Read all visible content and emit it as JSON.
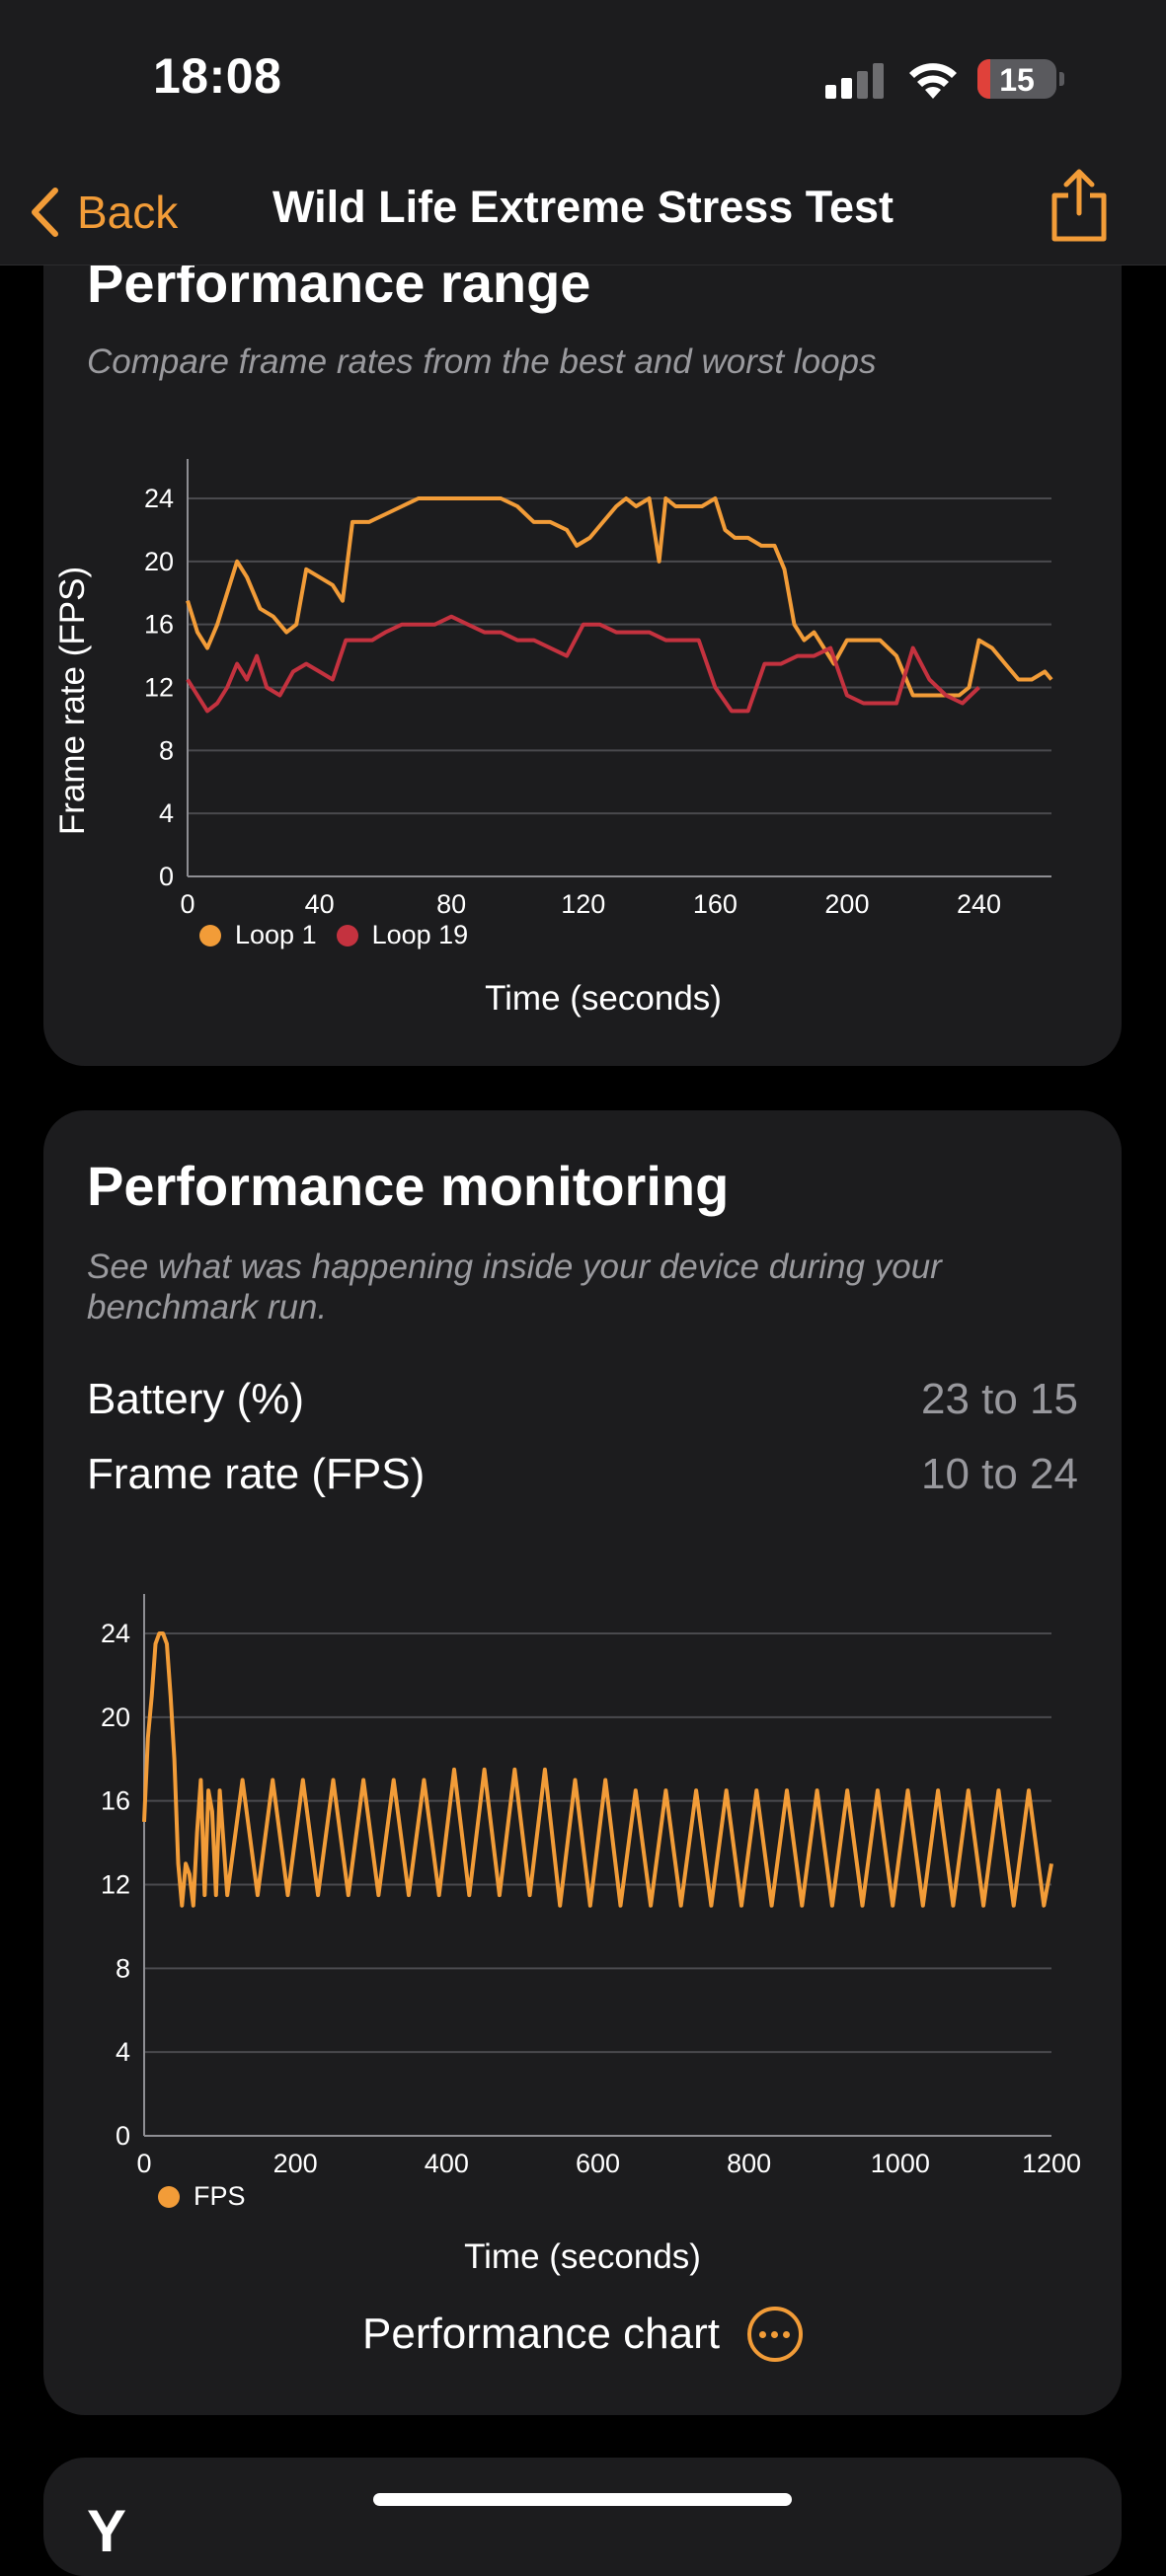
{
  "status_bar": {
    "time": "18:08",
    "battery": "15"
  },
  "nav": {
    "back_label": "Back",
    "title": "Wild Life Extreme Stress Test"
  },
  "range_card": {
    "title": "Performance range",
    "subtitle": "Compare frame rates from the best and worst loops"
  },
  "monitor_card": {
    "title": "Performance monitoring",
    "subtitle": "See what was happening inside your device during your benchmark run.",
    "rows": [
      {
        "label": "Battery (%)",
        "value": "23 to 15"
      },
      {
        "label": "Frame rate (FPS)",
        "value": "10 to 24"
      }
    ],
    "link_label": "Performance chart"
  },
  "next_card": {
    "title_partial": "Y"
  },
  "colors": {
    "accent": "#f29c38",
    "loop19": "#c4323f",
    "card": "#1c1c1e",
    "battery": "#e0413a"
  },
  "chart_data": [
    {
      "type": "line",
      "xlabel": "Time (seconds)",
      "ylabel": "Frame rate (FPS)",
      "xlim": [
        0,
        262
      ],
      "ylim": [
        0,
        24
      ],
      "xticks": [
        0,
        40,
        80,
        120,
        160,
        200,
        240
      ],
      "yticks": [
        0,
        4,
        8,
        12,
        16,
        20,
        24
      ],
      "grid": true,
      "legend": "bottom-left",
      "series": [
        {
          "name": "Loop 1",
          "color": "#f29c38",
          "x": [
            0,
            3,
            6,
            9,
            12,
            15,
            18,
            22,
            26,
            30,
            33,
            36,
            40,
            44,
            47,
            50,
            55,
            60,
            65,
            70,
            75,
            80,
            85,
            90,
            95,
            100,
            105,
            110,
            115,
            118,
            122,
            126,
            130,
            133,
            136,
            140,
            143,
            145,
            148,
            152,
            156,
            160,
            163,
            166,
            170,
            174,
            178,
            181,
            184,
            187,
            190,
            193,
            196,
            200,
            205,
            210,
            215,
            220,
            223,
            226,
            230,
            234,
            237,
            240,
            244,
            248,
            252,
            256,
            260,
            262
          ],
          "y": [
            17.5,
            15.5,
            14.5,
            16,
            18,
            20,
            19,
            17,
            16.5,
            15.5,
            16,
            19.5,
            19,
            18.5,
            17.5,
            22.5,
            22.5,
            23,
            23.5,
            24,
            24,
            24,
            24,
            24,
            24,
            23.5,
            22.5,
            22.5,
            22,
            21,
            21.5,
            22.5,
            23.5,
            24,
            23.5,
            24,
            20,
            24,
            23.5,
            23.5,
            23.5,
            24,
            22,
            21.5,
            21.5,
            21,
            21,
            19.5,
            16,
            15,
            15.5,
            14.5,
            13.5,
            15,
            15,
            15,
            14,
            11.5,
            11.5,
            11.5,
            11.5,
            11.5,
            12,
            15,
            14.5,
            13.5,
            12.5,
            12.5,
            13,
            12.5
          ]
        },
        {
          "name": "Loop 19",
          "color": "#c4323f",
          "x": [
            0,
            3,
            6,
            9,
            12,
            15,
            18,
            21,
            24,
            28,
            32,
            36,
            40,
            44,
            48,
            52,
            56,
            60,
            65,
            70,
            75,
            80,
            85,
            90,
            95,
            100,
            105,
            110,
            115,
            120,
            125,
            130,
            135,
            140,
            145,
            150,
            155,
            160,
            165,
            170,
            175,
            180,
            185,
            190,
            195,
            200,
            205,
            210,
            215,
            220,
            225,
            230,
            235,
            240
          ],
          "y": [
            12.5,
            11.5,
            10.5,
            11,
            12,
            13.5,
            12.5,
            14,
            12,
            11.5,
            13,
            13.5,
            13,
            12.5,
            15,
            15,
            15,
            15.5,
            16,
            16,
            16,
            16.5,
            16,
            15.5,
            15.5,
            15,
            15,
            14.5,
            14,
            16,
            16,
            15.5,
            15.5,
            15.5,
            15,
            15,
            15,
            12,
            10.5,
            10.5,
            13.5,
            13.5,
            14,
            14,
            14.5,
            11.5,
            11,
            11,
            11,
            14.5,
            12.5,
            11.5,
            11,
            12
          ]
        }
      ]
    },
    {
      "type": "line",
      "xlabel": "Time (seconds)",
      "ylabel": "",
      "xlim": [
        0,
        1200
      ],
      "ylim": [
        0,
        24
      ],
      "xticks": [
        0,
        200,
        400,
        600,
        800,
        1000,
        1200
      ],
      "yticks": [
        0,
        4,
        8,
        12,
        16,
        20,
        24
      ],
      "grid": true,
      "legend": "bottom-left",
      "series": [
        {
          "name": "FPS",
          "color": "#f29c38",
          "x": [
            0,
            5,
            10,
            15,
            20,
            25,
            30,
            35,
            40,
            45,
            50,
            55,
            60,
            65,
            70,
            75,
            80,
            85,
            90,
            95,
            100,
            110,
            130,
            150,
            170,
            190,
            210,
            230,
            250,
            270,
            290,
            310,
            330,
            350,
            370,
            390,
            410,
            430,
            450,
            470,
            490,
            510,
            530,
            550,
            570,
            590,
            610,
            630,
            650,
            670,
            690,
            710,
            730,
            750,
            770,
            790,
            810,
            830,
            850,
            870,
            890,
            910,
            930,
            950,
            970,
            990,
            1010,
            1030,
            1050,
            1070,
            1090,
            1110,
            1130,
            1150,
            1170,
            1190,
            1200
          ],
          "y": [
            15,
            19,
            21,
            23.5,
            24,
            24,
            23.5,
            21,
            18,
            13,
            11,
            13,
            12.5,
            11,
            14.5,
            17,
            11.5,
            16.5,
            15.5,
            11.5,
            16.5,
            11.5,
            17,
            11.5,
            17,
            11.5,
            17,
            11.5,
            17,
            11.5,
            17,
            11.5,
            17,
            11.5,
            17,
            11.5,
            17.5,
            11.5,
            17.5,
            11.5,
            17.5,
            11.5,
            17.5,
            11,
            17,
            11,
            17,
            11,
            16.5,
            11,
            16.5,
            11,
            16.5,
            11,
            16.5,
            11,
            16.5,
            11,
            16.5,
            11,
            16.5,
            11,
            16.5,
            11,
            16.5,
            11,
            16.5,
            11,
            16.5,
            11,
            16.5,
            11,
            16.5,
            11,
            16.5,
            11,
            13
          ]
        }
      ]
    }
  ]
}
